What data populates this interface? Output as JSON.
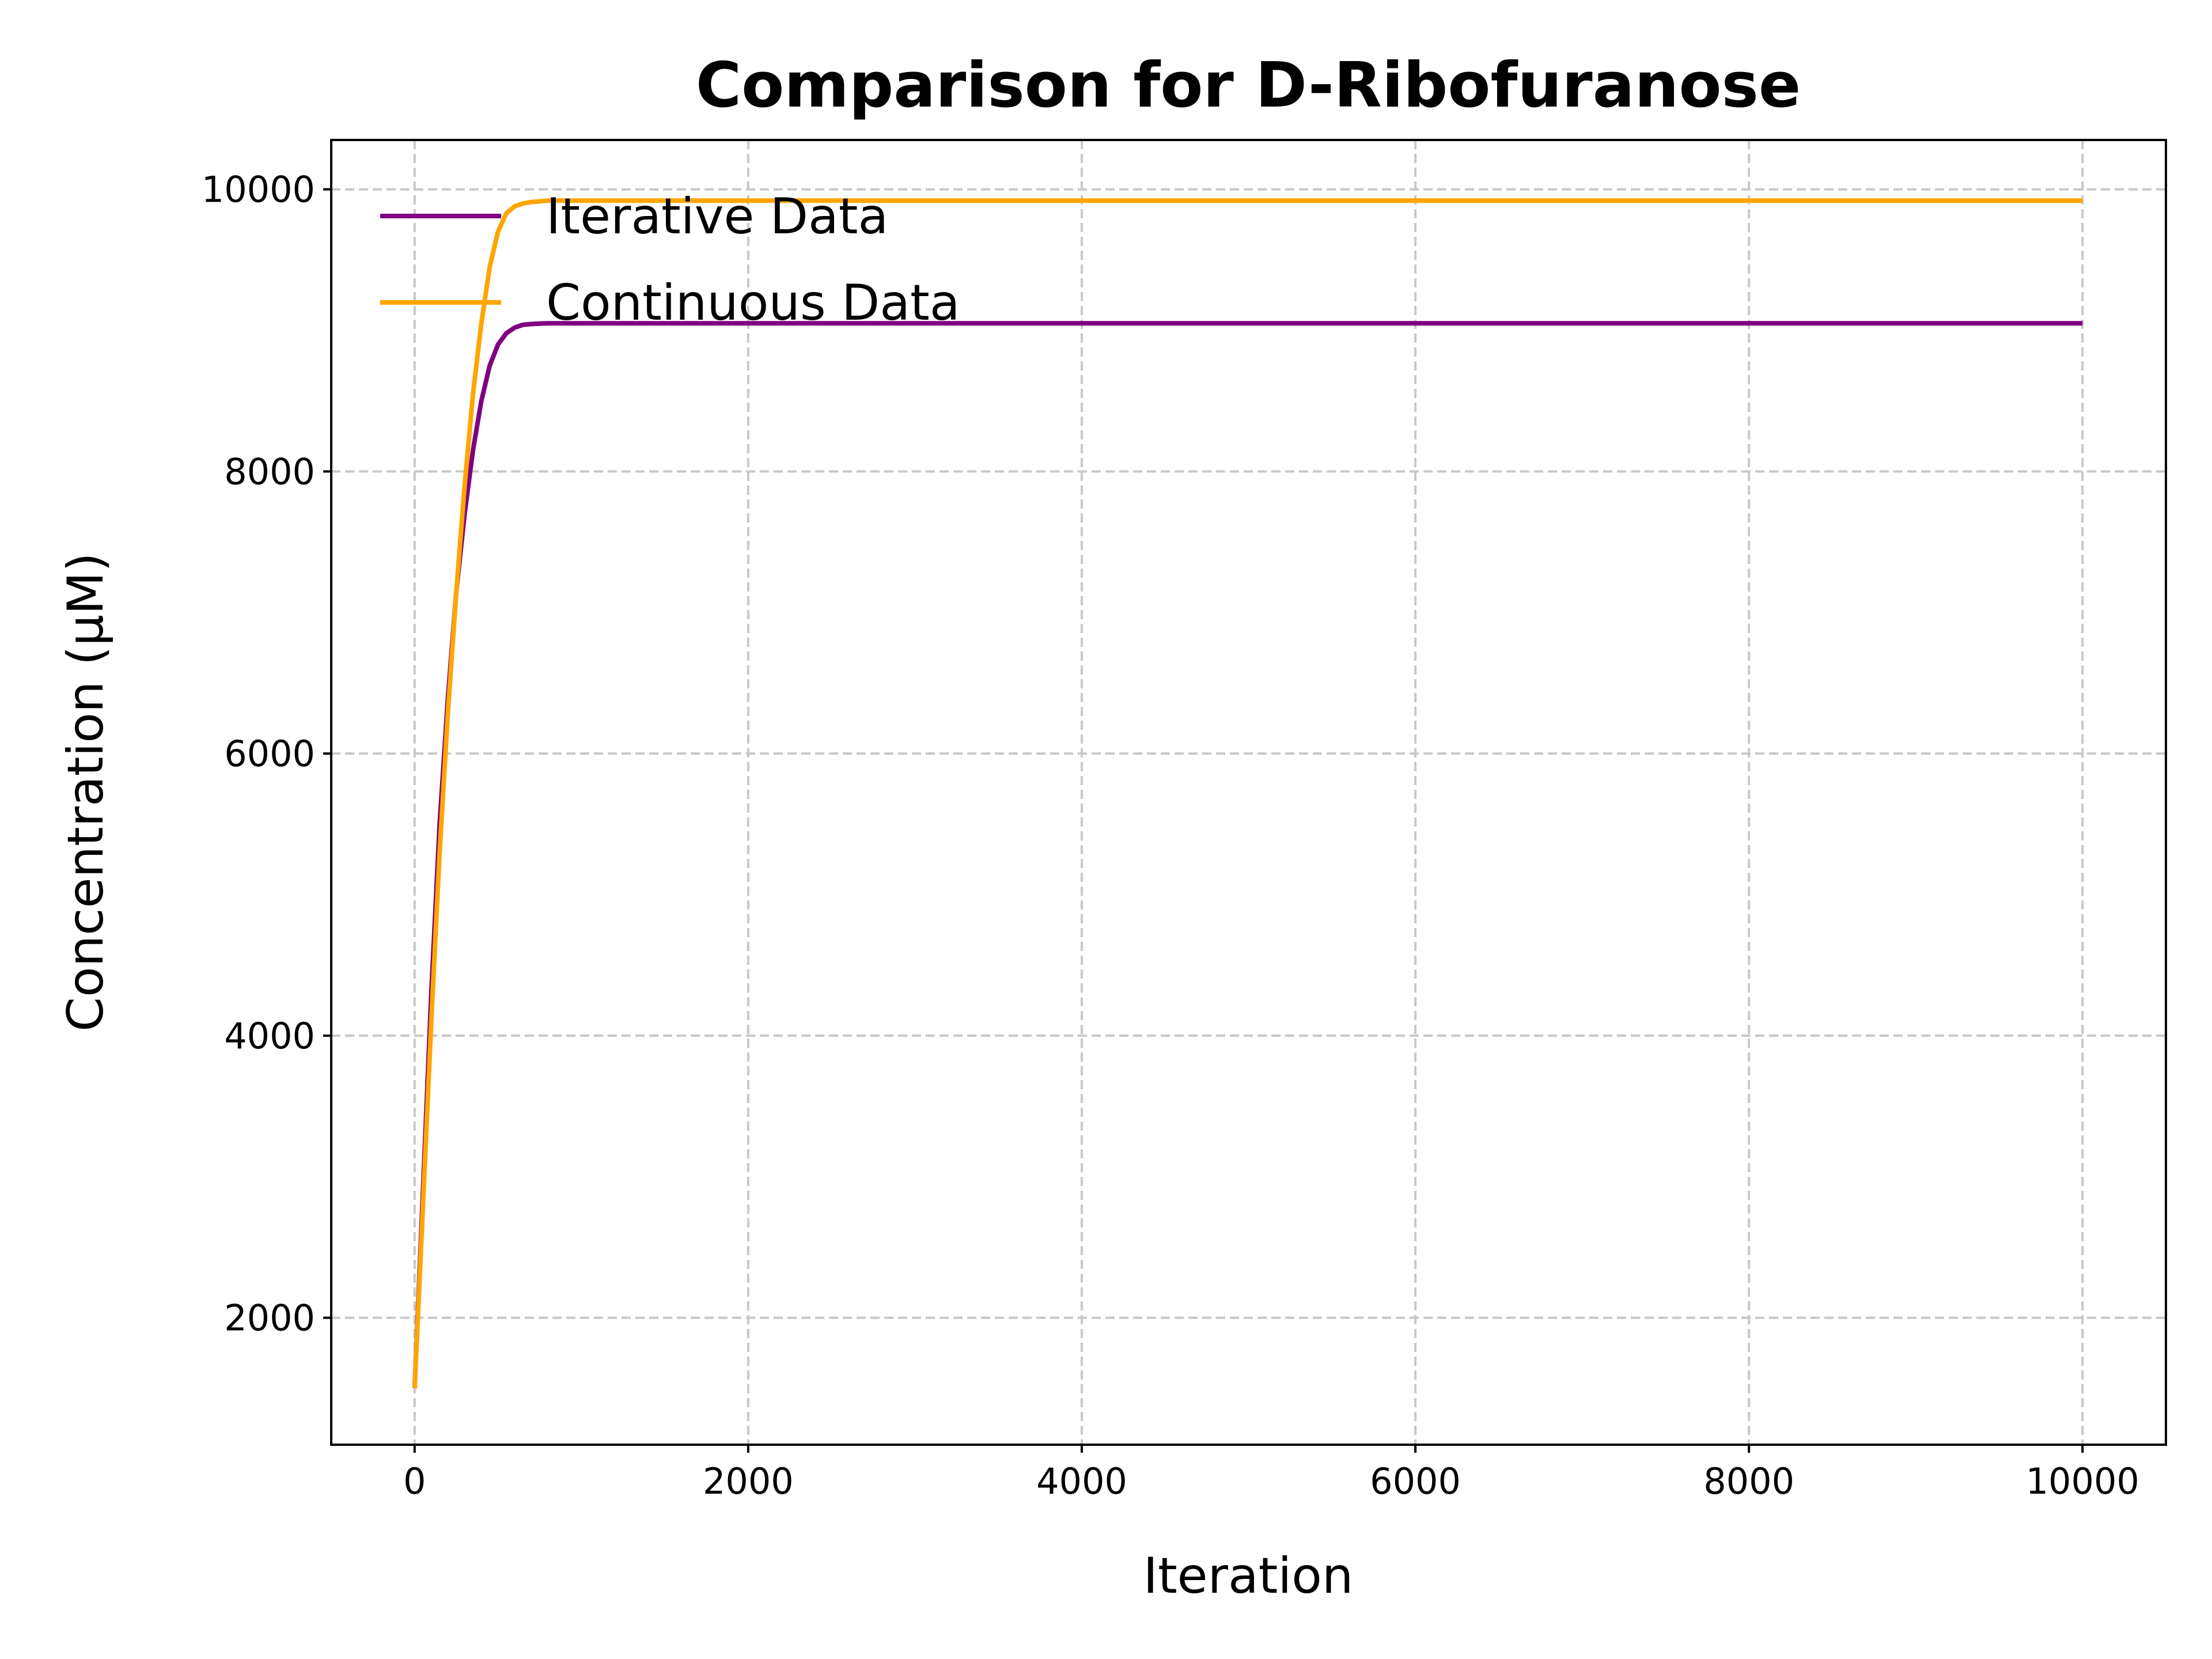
{
  "chart_data": {
    "type": "line",
    "title": "Comparison for D-Ribofuranose",
    "xlabel": "Iteration",
    "ylabel": "Concentration (μM)",
    "xlim": [
      -500,
      10500
    ],
    "ylim": [
      1100,
      10350
    ],
    "xticks": [
      0,
      2000,
      4000,
      6000,
      8000,
      10000
    ],
    "yticks": [
      2000,
      4000,
      6000,
      8000,
      10000
    ],
    "x_tick_labels": [
      "0",
      "2000",
      "4000",
      "6000",
      "8000",
      "10000"
    ],
    "y_tick_labels": [
      "2000",
      "4000",
      "6000",
      "8000",
      "10000"
    ],
    "grid": true,
    "legend_position": "top-left",
    "series": [
      {
        "name": "Iterative Data",
        "color": "#800080",
        "x": [
          0,
          50,
          100,
          150,
          200,
          250,
          300,
          350,
          400,
          450,
          500,
          550,
          600,
          650,
          700,
          750,
          800,
          900,
          1000,
          1500,
          2000,
          3000,
          4000,
          5000,
          6000,
          7000,
          8000,
          9000,
          10000
        ],
        "y": [
          1500,
          2900,
          4300,
          5500,
          6400,
          7150,
          7700,
          8150,
          8500,
          8750,
          8900,
          8980,
          9020,
          9040,
          9045,
          9048,
          9050,
          9050,
          9050,
          9050,
          9050,
          9050,
          9050,
          9050,
          9050,
          9050,
          9050,
          9050,
          9050
        ]
      },
      {
        "name": "Continuous Data",
        "color": "#FFA500",
        "x": [
          0,
          50,
          100,
          150,
          200,
          250,
          300,
          350,
          400,
          450,
          500,
          550,
          600,
          650,
          700,
          750,
          800,
          900,
          1000,
          1500,
          2000,
          3000,
          4000,
          5000,
          6000,
          7000,
          8000,
          9000,
          10000
        ],
        "y": [
          1500,
          2800,
          4100,
          5300,
          6300,
          7150,
          7900,
          8550,
          9050,
          9450,
          9700,
          9830,
          9880,
          9900,
          9910,
          9915,
          9920,
          9920,
          9920,
          9920,
          9920,
          9920,
          9920,
          9920,
          9920,
          9920,
          9920,
          9920,
          9920
        ]
      }
    ]
  }
}
